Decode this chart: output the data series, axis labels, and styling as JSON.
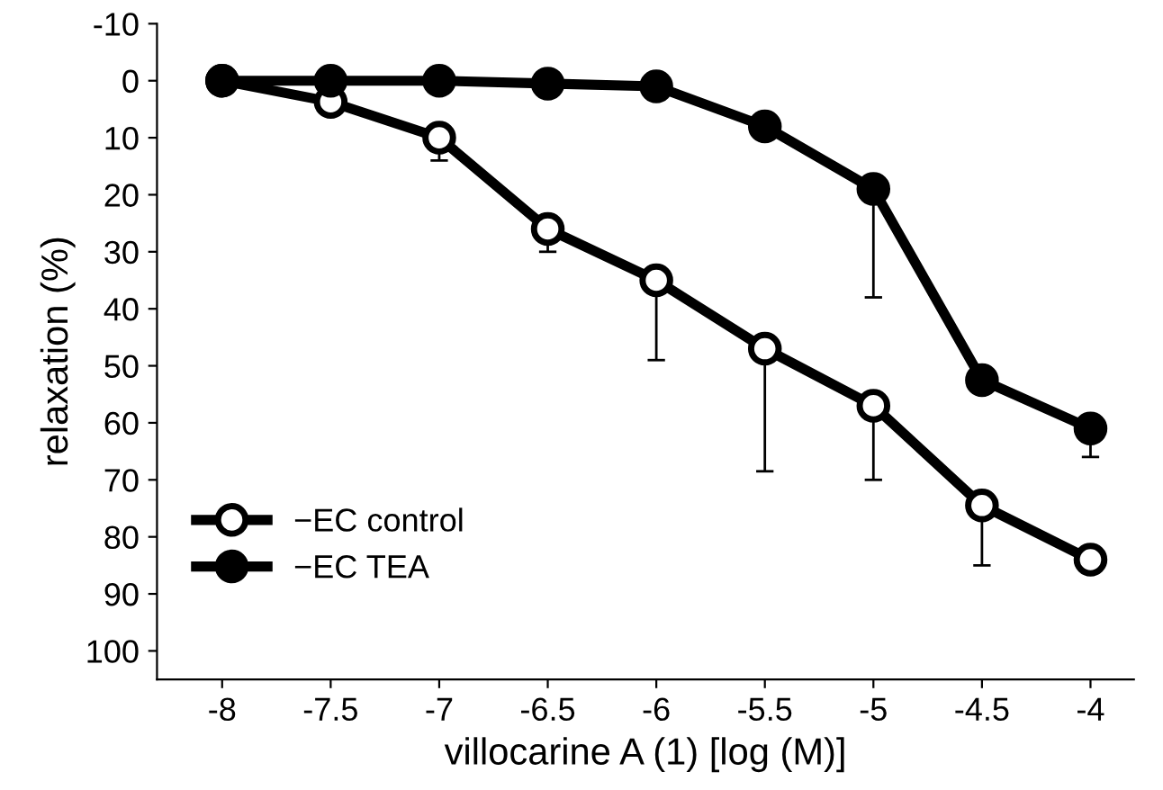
{
  "chart_data": {
    "type": "line",
    "xlabel": "villocarine A (1) [log (M)]",
    "ylabel": "relaxation (%)",
    "x": [
      -8,
      -7.5,
      -7,
      -6.5,
      -6,
      -5.5,
      -5,
      -4.5,
      -4
    ],
    "series": [
      {
        "name": "−EC control",
        "color": "#ffffff",
        "values": [
          0,
          3.7,
          10,
          26,
          35,
          47,
          57,
          74.5,
          84
        ],
        "errors": [
          null,
          null,
          [
            10,
            14
          ],
          [
            26,
            30
          ],
          [
            35,
            49
          ],
          [
            47,
            68.5
          ],
          [
            57,
            70
          ],
          [
            74.5,
            85
          ],
          null
        ]
      },
      {
        "name": "−EC TEA",
        "color": "#000000",
        "values": [
          0,
          0,
          0,
          0.5,
          1,
          8,
          19,
          52.5,
          61
        ],
        "errors": [
          null,
          null,
          null,
          null,
          null,
          null,
          [
            19,
            38
          ],
          null,
          [
            61,
            66
          ]
        ]
      }
    ],
    "xlim": [
      -8.3,
      -3.8
    ],
    "xticks": [
      -8,
      -7.5,
      -7,
      -6.5,
      -6,
      -5.5,
      -5,
      -4.5,
      -4
    ],
    "ylim": [
      105,
      -10
    ],
    "yticks": [
      -10,
      0,
      10,
      20,
      30,
      40,
      50,
      60,
      70,
      80,
      90,
      100
    ],
    "marker": "circle",
    "line_style": "solid",
    "legend": "bottom left",
    "grid": false
  }
}
